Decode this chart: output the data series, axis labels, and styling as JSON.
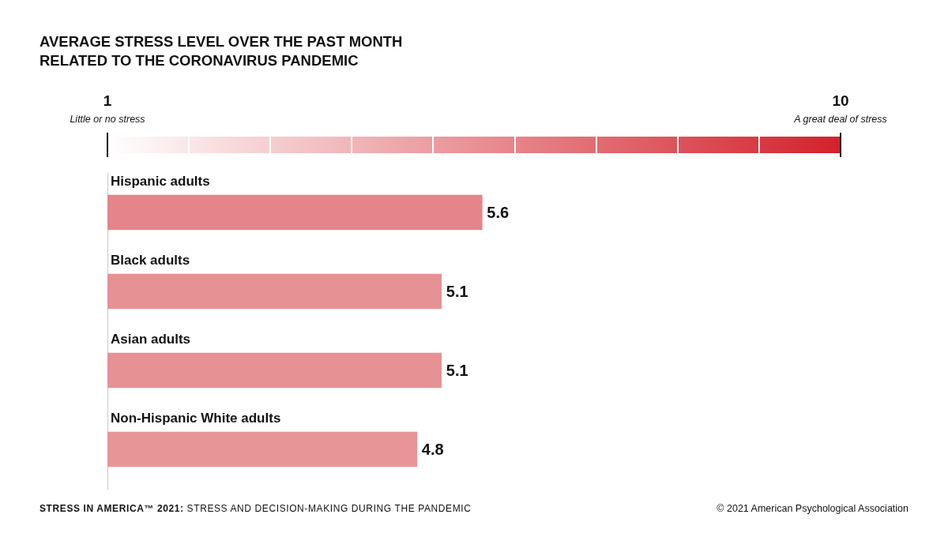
{
  "chart_data": {
    "type": "bar",
    "orientation": "horizontal",
    "title": "AVERAGE STRESS LEVEL OVER THE PAST MONTH RELATED TO THE CORONAVIRUS PANDEMIC",
    "categories": [
      "Hispanic adults",
      "Black adults",
      "Asian adults",
      "Non-Hispanic White adults"
    ],
    "values": [
      5.6,
      5.1,
      5.1,
      4.8
    ],
    "colors": [
      "#e5848a",
      "#e69194",
      "#e69194",
      "#e89597"
    ],
    "xlim": [
      1,
      10
    ],
    "xticks": [
      1,
      10
    ],
    "data_labels": true,
    "annotations": [
      "Little or no stress",
      "A great deal of stress",
      "STRESS IN AMERICA™ 2021: STRESS AND DECISION-MAKING DURING THE PANDEMIC",
      "© 2021 American Psychological Association"
    ]
  }
}
